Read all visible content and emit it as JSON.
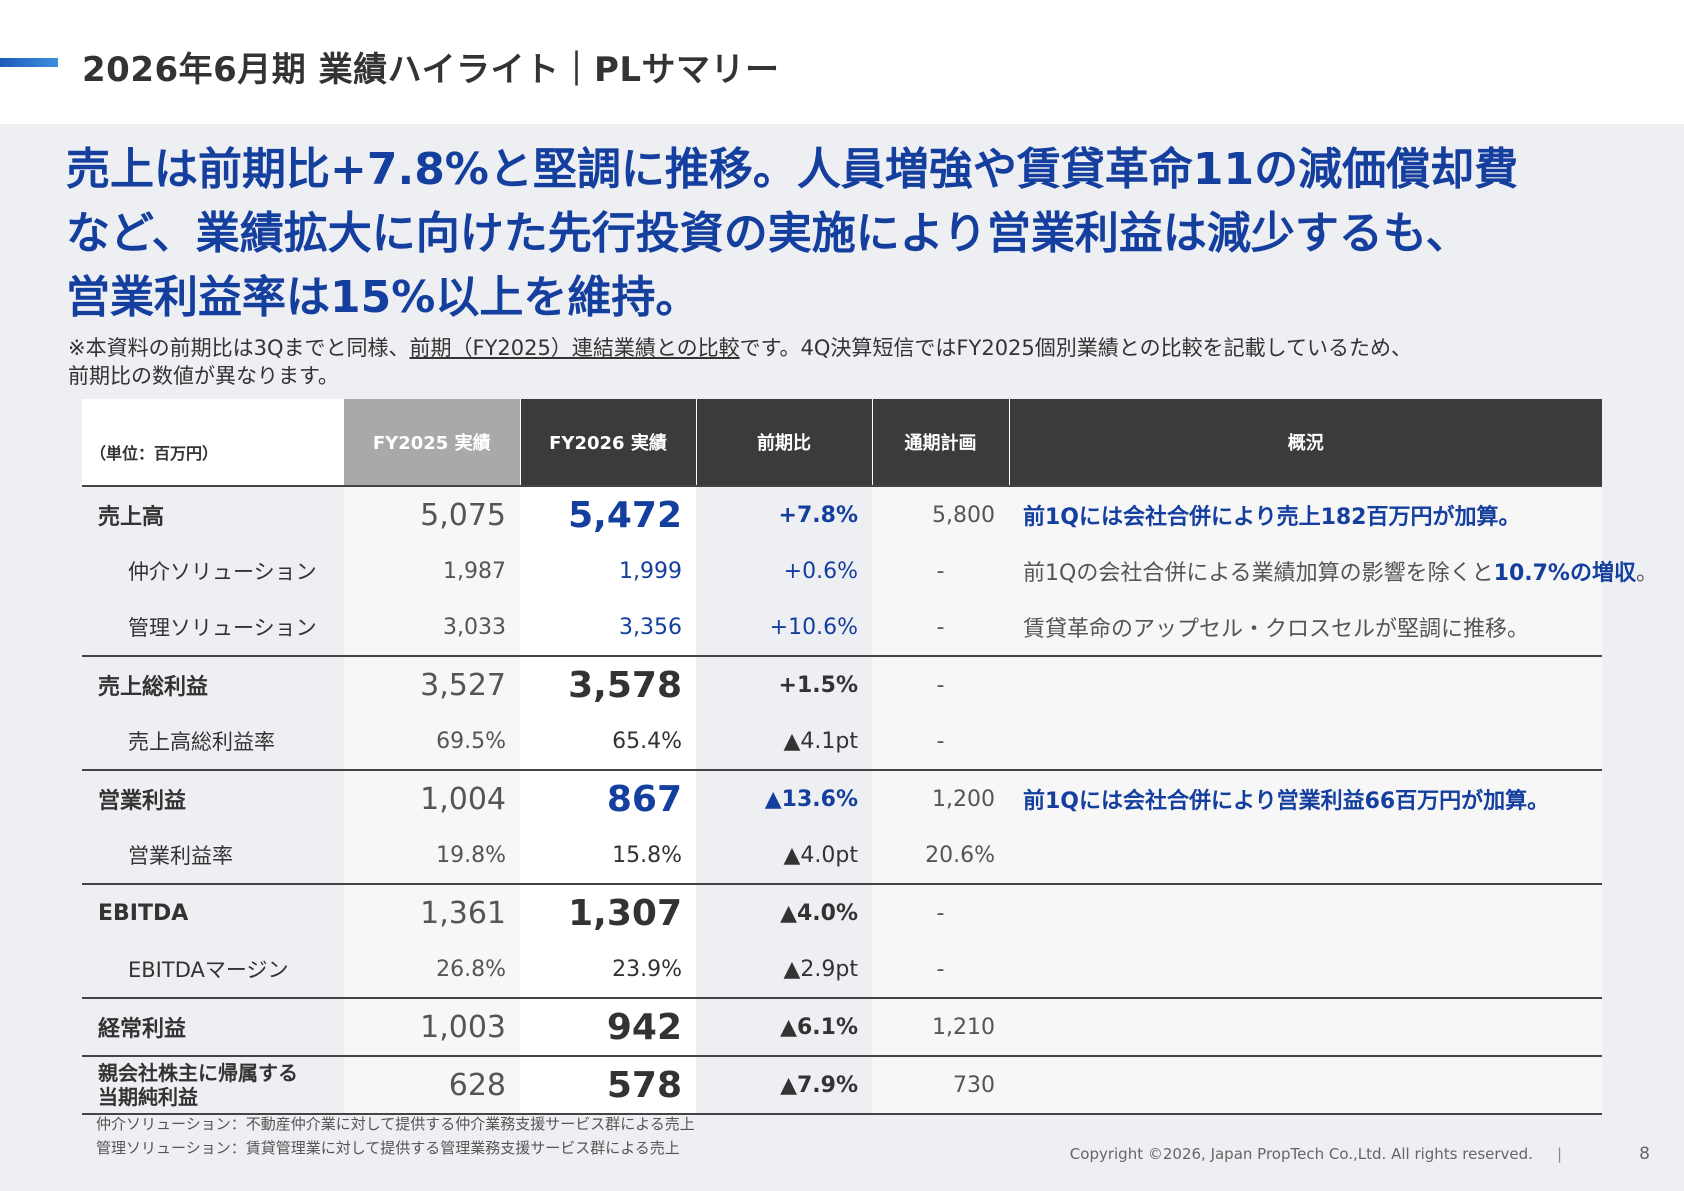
{
  "header": {
    "title": "2026年6月期 業績ハイライト｜PLサマリー"
  },
  "lead": {
    "line1": "売上は前期比+7.8%と堅調に推移。人員増強や賃貸革命11の減価償却費",
    "line2": "など、業績拡大に向けた先行投資の実施により営業利益は減少するも、",
    "line3": "営業利益率は15%以上を維持。"
  },
  "note": {
    "part1": "※本資料の前期比は3Qまでと同様、",
    "underlined": "前期（FY2025）連結業績との比較",
    "part2": "です。4Q決算短信ではFY2025個別業績との比較を記載しているため、",
    "line2": "前期比の数値が異なります。"
  },
  "table": {
    "headers": {
      "unit": "（単位：百万円）",
      "fy2025": "FY2025 実績",
      "fy2026": "FY2026 実績",
      "yoy": "前期比",
      "plan": "通期計画",
      "summary": "概況"
    },
    "rows": [
      {
        "label": "売上高",
        "fy2025": "5,075",
        "fy2026": "5,472",
        "yoy": "+7.8%",
        "plan": "5,800",
        "summary": "前1Qには会社合併により売上182百万円が加算。"
      },
      {
        "label": "仲介ソリューション",
        "fy2025": "1,987",
        "fy2026": "1,999",
        "yoy": "+0.6%",
        "plan": "-",
        "summary_pre": "前1Qの会社合併による業績加算の影響を除くと",
        "summary_hl": "10.7%の増収",
        "summary_post": "。"
      },
      {
        "label": "管理ソリューション",
        "fy2025": "3,033",
        "fy2026": "3,356",
        "yoy": "+10.6%",
        "plan": "-",
        "summary": "賃貸革命のアップセル・クロスセルが堅調に推移。"
      },
      {
        "label": "売上総利益",
        "fy2025": "3,527",
        "fy2026": "3,578",
        "yoy": "+1.5%",
        "plan": "-",
        "summary": ""
      },
      {
        "label": "売上高総利益率",
        "fy2025": "69.5%",
        "fy2026": "65.4%",
        "yoy": "▲4.1pt",
        "plan": "-",
        "summary": ""
      },
      {
        "label": "営業利益",
        "fy2025": "1,004",
        "fy2026": "867",
        "yoy": "▲13.6%",
        "plan": "1,200",
        "summary": "前1Qには会社合併により営業利益66百万円が加算。"
      },
      {
        "label": "営業利益率",
        "fy2025": "19.8%",
        "fy2026": "15.8%",
        "yoy": "▲4.0pt",
        "plan": "20.6%",
        "summary": ""
      },
      {
        "label": "EBITDA",
        "fy2025": "1,361",
        "fy2026": "1,307",
        "yoy": "▲4.0%",
        "plan": "-",
        "summary": ""
      },
      {
        "label": "EBITDAマージン",
        "fy2025": "26.8%",
        "fy2026": "23.9%",
        "yoy": "▲2.9pt",
        "plan": "-",
        "summary": ""
      },
      {
        "label": "経常利益",
        "fy2025": "1,003",
        "fy2026": "942",
        "yoy": "▲6.1%",
        "plan": "1,210",
        "summary": ""
      },
      {
        "label_line1": "親会社株主に帰属する",
        "label_line2": "当期純利益",
        "fy2025": "628",
        "fy2026": "578",
        "yoy": "▲7.9%",
        "plan": "730",
        "summary": ""
      }
    ]
  },
  "footnotes": {
    "line1": "仲介ソリューション：不動産仲介業に対して提供する仲介業務支援サービス群による売上",
    "line2": "管理ソリューション：賃貸管理業に対して提供する管理業務支援サービス群による売上"
  },
  "footer": {
    "copyright": "Copyright ©2026, Japan PropTech Co.,Ltd. All rights reserved.",
    "separator": "|",
    "page": "8"
  },
  "colors": {
    "accent_blue": "#153f9e",
    "header_dark": "#3b3b3b",
    "header_grey": "#a9a9a9",
    "background": "#eeeff2"
  }
}
